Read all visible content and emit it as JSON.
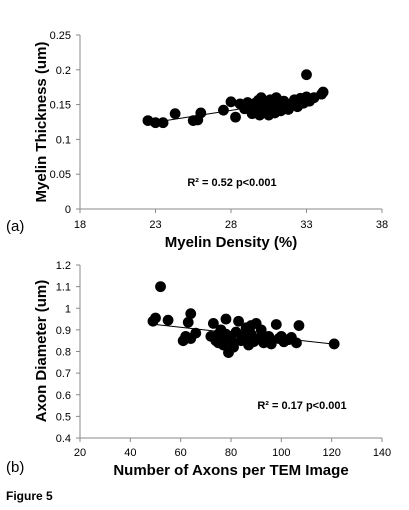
{
  "figure_caption": "Figure 5",
  "chart_data": [
    {
      "type": "scatter",
      "panel_label": "(a)",
      "title": "",
      "xlabel": "Myelin Density (%)",
      "ylabel": "Myelin Thickness (um)",
      "xlim": [
        18,
        38
      ],
      "ylim": [
        0,
        0.25
      ],
      "xticks": [
        18,
        23,
        28,
        33,
        38
      ],
      "xtick_labels": [
        "18",
        "23",
        "28",
        "33",
        "38"
      ],
      "yticks": [
        0,
        0.05,
        0.1,
        0.15,
        0.2,
        0.25
      ],
      "ytick_labels": [
        "0",
        "0.05",
        "0.1",
        "0.15",
        "0.2",
        "0.25"
      ],
      "annotation": "R² = 0.52 p<0.001",
      "trendline": {
        "x": [
          22.5,
          34.0
        ],
        "y": [
          0.123,
          0.162
        ]
      },
      "points": [
        [
          22.5,
          0.127
        ],
        [
          23.0,
          0.124
        ],
        [
          23.5,
          0.124
        ],
        [
          24.3,
          0.137
        ],
        [
          25.5,
          0.127
        ],
        [
          25.8,
          0.128
        ],
        [
          26.0,
          0.138
        ],
        [
          27.5,
          0.142
        ],
        [
          28.0,
          0.154
        ],
        [
          28.3,
          0.132
        ],
        [
          28.6,
          0.151
        ],
        [
          28.9,
          0.144
        ],
        [
          29.1,
          0.153
        ],
        [
          29.3,
          0.148
        ],
        [
          29.4,
          0.137
        ],
        [
          29.5,
          0.146
        ],
        [
          29.6,
          0.152
        ],
        [
          29.7,
          0.141
        ],
        [
          29.8,
          0.156
        ],
        [
          29.9,
          0.135
        ],
        [
          30.0,
          0.149
        ],
        [
          30.0,
          0.16
        ],
        [
          30.1,
          0.144
        ],
        [
          30.2,
          0.139
        ],
        [
          30.3,
          0.154
        ],
        [
          30.4,
          0.147
        ],
        [
          30.5,
          0.135
        ],
        [
          30.6,
          0.157
        ],
        [
          30.7,
          0.142
        ],
        [
          30.8,
          0.15
        ],
        [
          30.9,
          0.138
        ],
        [
          31.0,
          0.16
        ],
        [
          31.1,
          0.146
        ],
        [
          31.2,
          0.153
        ],
        [
          31.3,
          0.141
        ],
        [
          31.5,
          0.155
        ],
        [
          31.6,
          0.148
        ],
        [
          31.8,
          0.143
        ],
        [
          32.0,
          0.15
        ],
        [
          32.2,
          0.157
        ],
        [
          32.4,
          0.147
        ],
        [
          32.6,
          0.159
        ],
        [
          32.8,
          0.152
        ],
        [
          33.0,
          0.161
        ],
        [
          33.2,
          0.155
        ],
        [
          33.0,
          0.193
        ],
        [
          33.5,
          0.16
        ],
        [
          34.0,
          0.165
        ],
        [
          34.1,
          0.168
        ]
      ]
    },
    {
      "type": "scatter",
      "panel_label": "(b)",
      "title": "",
      "xlabel": "Number of Axons per TEM Image",
      "ylabel": "Axon Diameter (um)",
      "xlim": [
        20,
        140
      ],
      "ylim": [
        0.4,
        1.2
      ],
      "xticks": [
        20,
        40,
        60,
        80,
        100,
        120,
        140
      ],
      "xtick_labels": [
        "20",
        "40",
        "60",
        "80",
        "100",
        "120",
        "140"
      ],
      "yticks": [
        0.4,
        0.5,
        0.6,
        0.7,
        0.8,
        0.9,
        1.0,
        1.1,
        1.2
      ],
      "ytick_labels": [
        "0.4",
        "0.5",
        "0.6",
        "0.7",
        "0.8",
        "0.9",
        "1",
        "1.1",
        "1.2"
      ],
      "annotation": "R² = 0.17 p<0.001",
      "trendline": {
        "x": [
          50,
          120
        ],
        "y": [
          0.925,
          0.835
        ]
      },
      "points": [
        [
          49,
          0.94
        ],
        [
          50,
          0.955
        ],
        [
          52,
          1.1
        ],
        [
          55,
          0.945
        ],
        [
          61,
          0.85
        ],
        [
          62,
          0.87
        ],
        [
          63,
          0.935
        ],
        [
          64,
          0.975
        ],
        [
          64,
          0.86
        ],
        [
          66,
          0.885
        ],
        [
          72,
          0.87
        ],
        [
          73,
          0.93
        ],
        [
          74,
          0.85
        ],
        [
          75,
          0.88
        ],
        [
          75,
          0.84
        ],
        [
          76,
          0.86
        ],
        [
          76,
          0.9
        ],
        [
          77,
          0.83
        ],
        [
          78,
          0.95
        ],
        [
          78,
          0.88
        ],
        [
          79,
          0.795
        ],
        [
          80,
          0.87
        ],
        [
          80,
          0.855
        ],
        [
          81,
          0.82
        ],
        [
          82,
          0.89
        ],
        [
          83,
          0.94
        ],
        [
          84,
          0.85
        ],
        [
          85,
          0.875
        ],
        [
          86,
          0.86
        ],
        [
          86,
          0.91
        ],
        [
          87,
          0.83
        ],
        [
          88,
          0.92
        ],
        [
          88,
          0.88
        ],
        [
          89,
          0.845
        ],
        [
          90,
          0.93
        ],
        [
          91,
          0.86
        ],
        [
          92,
          0.9
        ],
        [
          93,
          0.84
        ],
        [
          94,
          0.86
        ],
        [
          95,
          0.87
        ],
        [
          96,
          0.835
        ],
        [
          98,
          0.925
        ],
        [
          99,
          0.86
        ],
        [
          100,
          0.87
        ],
        [
          101,
          0.845
        ],
        [
          103,
          0.855
        ],
        [
          104,
          0.865
        ],
        [
          106,
          0.84
        ],
        [
          107,
          0.92
        ],
        [
          121,
          0.835
        ]
      ]
    }
  ]
}
